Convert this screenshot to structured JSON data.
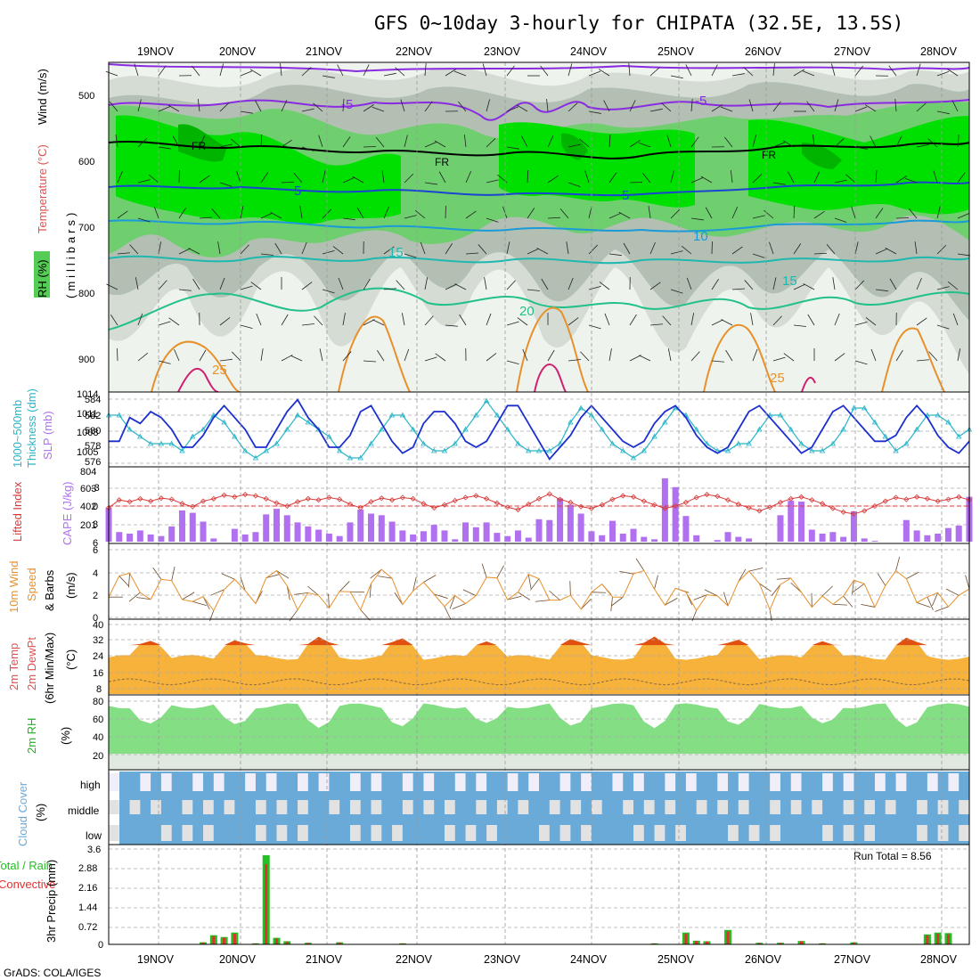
{
  "title": "GFS 0~10day 3-hourly for CHIPATA (32.5E, 13.5S)",
  "footer": "GrADS: COLA/IGES",
  "colors": {
    "rh1": "#eef3ee",
    "rh2": "#d4dcd4",
    "rh3": "#b2bfb2",
    "rh4": "#6fcf6f",
    "rh5": "#00e000",
    "rh6": "#00b400",
    "slp": "#1c2fcf",
    "thickness": "#2ab5c8",
    "lifted": "#d83a3a",
    "cape": "#b070f0",
    "wind10": "#e8902a",
    "precip_total": "#22c022",
    "precip_conv": "#e03030",
    "cloud": "#6aaad8"
  },
  "dates": [
    "19NOV",
    "20NOV",
    "21NOV",
    "22NOV",
    "23NOV",
    "24NOV",
    "25NOV",
    "26NOV",
    "27NOV",
    "28NOV"
  ],
  "panels": {
    "upper": {
      "ylabel_rh": "RH (%)",
      "ylabel_temp": "Temperature (°C)",
      "ylabel_wind": "Wind (m/s)",
      "ylabel_axis": "(millibars)",
      "ticks": [
        "500",
        "600",
        "700",
        "800",
        "900"
      ],
      "contour_labels": [
        "-5",
        "-5",
        "FR",
        "FR",
        "FR",
        "5",
        "5",
        "10",
        "15",
        "15",
        "20",
        "25",
        "25"
      ]
    },
    "slp": {
      "label1": "1000~500mb",
      "label2": "Thickness (dm)",
      "label3": "SLP (mb)",
      "left_ticks": [
        "584",
        "582",
        "580",
        "578",
        "576"
      ],
      "right_ticks": [
        "1014",
        "1011",
        "1008",
        "1005"
      ]
    },
    "cape": {
      "label1": "Lifted Index",
      "label2": "CAPE (J/kg)",
      "left_ticks": [
        "-3",
        "0",
        "3",
        "6"
      ],
      "right_ticks": [
        "804",
        "603",
        "402",
        "201"
      ]
    },
    "wind": {
      "label1": "10m Wind",
      "label2": "Speed",
      "label3": "& Barbs",
      "label4": "(m/s)",
      "ticks": [
        "6",
        "4",
        "2",
        "0"
      ]
    },
    "temp": {
      "label1": "2m Temp",
      "label2": "2m DewPt",
      "label3": "(6hr Min/Max)",
      "label4": "(°C)",
      "ticks": [
        "40",
        "32",
        "24",
        "16",
        "8"
      ]
    },
    "rh": {
      "label1": "2m RH",
      "label2": "(%)",
      "ticks": [
        "80",
        "60",
        "40",
        "20"
      ]
    },
    "cloud": {
      "label1": "Cloud Cover",
      "label2": "(%)",
      "levels": [
        "high",
        "middle",
        "low"
      ]
    },
    "precip": {
      "label1": "Total / Rain",
      "label2": "Convective",
      "label3": "3hr Precip (mm)",
      "ticks": [
        "3.6",
        "2.88",
        "2.16",
        "1.44",
        "0.72",
        "0"
      ],
      "run_total": "Run Total = 8.56"
    }
  },
  "chart_data": {
    "type": "line",
    "x_unit": "3-hourly steps from 18NOV 12Z",
    "slp_mb": [
      1007,
      1007,
      1011,
      1010,
      1012,
      1011,
      1009,
      1006,
      1006,
      1008,
      1011,
      1013,
      1011,
      1009,
      1006,
      1006,
      1009,
      1012,
      1014,
      1011,
      1009,
      1006,
      1006,
      1008,
      1012,
      1013,
      1010,
      1007,
      1005,
      1006,
      1010,
      1012,
      1012,
      1010,
      1007,
      1006,
      1007,
      1010,
      1013,
      1013,
      1010,
      1007,
      1004,
      1006,
      1008,
      1011,
      1013,
      1011,
      1009,
      1007,
      1006,
      1007,
      1010,
      1012,
      1013,
      1011,
      1008,
      1006,
      1005,
      1006,
      1009,
      1012,
      1013,
      1011,
      1009,
      1007,
      1005,
      1006,
      1009,
      1012,
      1013,
      1011,
      1009,
      1007,
      1007,
      1008,
      1011,
      1013,
      1011,
      1008,
      1006,
      1005,
      1007
    ],
    "thickness_dm": [
      582,
      582,
      580,
      579,
      578,
      578,
      578,
      577,
      579,
      580,
      582,
      581,
      579,
      577,
      576,
      577,
      578,
      580,
      582,
      581,
      580,
      579,
      577,
      576,
      576,
      578,
      580,
      582,
      582,
      580,
      578,
      577,
      577,
      578,
      580,
      582,
      584,
      582,
      580,
      578,
      577,
      577,
      577,
      578,
      581,
      583,
      582,
      580,
      578,
      577,
      576,
      577,
      579,
      581,
      583,
      582,
      580,
      578,
      577,
      577,
      578,
      578,
      580,
      582,
      582,
      580,
      578,
      577,
      577,
      578,
      580,
      583,
      583,
      581,
      579,
      577,
      578,
      580,
      582,
      582,
      581,
      579,
      580
    ],
    "lifted_index": [
      0.3,
      -1.0,
      -0.7,
      -1.2,
      -0.8,
      -1.3,
      -1.1,
      -0.4,
      0.1,
      -0.8,
      -1.2,
      -1.8,
      -1.5,
      -1.9,
      -1.7,
      -1.2,
      -0.5,
      0.0,
      -0.7,
      -1.2,
      -1.0,
      -1.4,
      -1.1,
      -0.3,
      0.3,
      -0.7,
      -1.3,
      -1.0,
      -1.4,
      -1.2,
      -0.4,
      0.3,
      -0.2,
      -0.9,
      -1.4,
      -1.7,
      -1.2,
      -0.5,
      0.2,
      0.6,
      -0.3,
      -1.2,
      -2.0,
      -1.1,
      -0.6,
      0.1,
      0.4,
      -0.2,
      -1.1,
      -1.7,
      -1.5,
      -0.8,
      -0.2,
      0.4,
      0.0,
      -0.6,
      -1.4,
      -1.9,
      -1.6,
      -1.0,
      -0.3,
      0.3,
      0.8,
      0.2,
      -0.6,
      -1.2,
      -1.5,
      -1.0,
      -0.4,
      0.4,
      1.0,
      1.3,
      0.8,
      0.0,
      -0.8,
      -1.4,
      -1.1,
      -1.5,
      -1.2,
      -0.8,
      -1.1,
      -1.5,
      -1.0
    ],
    "cape_jkg": [
      420,
      120,
      100,
      140,
      90,
      70,
      190,
      390,
      360,
      250,
      40,
      0,
      160,
      90,
      120,
      340,
      410,
      330,
      240,
      190,
      150,
      100,
      70,
      240,
      400,
      350,
      330,
      250,
      140,
      90,
      130,
      210,
      140,
      30,
      240,
      180,
      240,
      110,
      70,
      140,
      50,
      280,
      270,
      540,
      460,
      350,
      130,
      80,
      260,
      100,
      160,
      60,
      30,
      790,
      680,
      320,
      80,
      0,
      20,
      120,
      60,
      40,
      0,
      0,
      330,
      510,
      500,
      150,
      100,
      120,
      60,
      380,
      40,
      10,
      0,
      0,
      270,
      140,
      80,
      100,
      170,
      200,
      560
    ]
  }
}
